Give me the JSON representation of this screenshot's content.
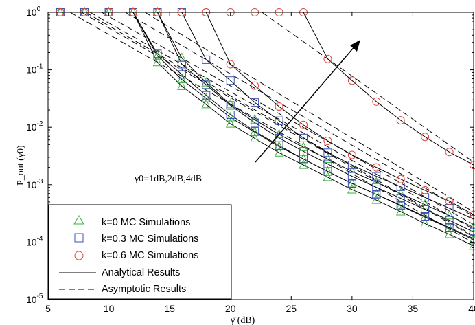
{
  "chart_data": {
    "type": "line",
    "xlabel": "γ̄ (dB)",
    "ylabel": "P_out (γ0)",
    "xlim": [
      5,
      40
    ],
    "ylim": [
      1e-05,
      1
    ],
    "yscale": "log",
    "x_ticks": [
      "5",
      "10",
      "15",
      "20",
      "25",
      "30",
      "35",
      "40"
    ],
    "y_ticks": [
      {
        "base": "10",
        "exp": "0"
      },
      {
        "base": "10",
        "exp": "-1"
      },
      {
        "base": "10",
        "exp": "-2"
      },
      {
        "base": "10",
        "exp": "-3"
      },
      {
        "base": "10",
        "exp": "-4"
      },
      {
        "base": "10",
        "exp": "-5"
      }
    ],
    "grid": false,
    "legend_position": "bottom-left",
    "annotation": "γ0=1dB,2dB,4dB",
    "colors": {
      "k0": "#3cb043",
      "k03": "#3c52b4",
      "k06": "#e0453d",
      "line": "#000000"
    },
    "x": [
      6,
      8,
      10,
      12,
      14,
      16,
      18,
      20,
      22,
      24,
      26,
      28,
      30,
      32,
      34,
      36,
      38,
      40
    ],
    "series": [
      {
        "k": "0",
        "gamma0_dB": 1,
        "start": 12,
        "values": [
          1,
          1,
          1,
          1,
          0.135,
          0.052,
          0.025,
          0.0115,
          0.0064,
          0.0036,
          0.0022,
          0.00135,
          0.00082,
          0.00054,
          0.00034,
          0.00021,
          0.000137,
          8.6e-05
        ]
      },
      {
        "k": "0",
        "gamma0_dB": 2,
        "start": 12,
        "values": [
          1,
          1,
          1,
          1,
          0.175,
          0.068,
          0.032,
          0.0148,
          0.0082,
          0.0046,
          0.0028,
          0.0017,
          0.00105,
          0.00068,
          0.00043,
          0.00027,
          0.000175,
          0.00011
        ]
      },
      {
        "k": "0",
        "gamma0_dB": 4,
        "start": 14,
        "values": [
          1,
          1,
          1,
          1,
          1,
          0.16,
          0.06,
          0.025,
          0.0135,
          0.0075,
          0.0045,
          0.0028,
          0.0017,
          0.0011,
          0.0007,
          0.00045,
          0.00029,
          0.00018
        ]
      },
      {
        "k": "0.3",
        "gamma0_dB": 1,
        "start": 12,
        "values": [
          1,
          1,
          1,
          1,
          0.19,
          0.083,
          0.036,
          0.0165,
          0.0085,
          0.0048,
          0.0028,
          0.0017,
          0.00105,
          0.00068,
          0.00044,
          0.00028,
          0.00018,
          0.000115
        ]
      },
      {
        "k": "0.3",
        "gamma0_dB": 2,
        "start": 14,
        "values": [
          1,
          1,
          1,
          1,
          1,
          0.125,
          0.055,
          0.024,
          0.012,
          0.0065,
          0.0038,
          0.0023,
          0.0014,
          0.0009,
          0.00058,
          0.00037,
          0.00024,
          0.00015
        ]
      },
      {
        "k": "0.3",
        "gamma0_dB": 4,
        "start": 16,
        "values": [
          1,
          1,
          1,
          1,
          1,
          1,
          0.15,
          0.065,
          0.027,
          0.013,
          0.0065,
          0.0036,
          0.0022,
          0.0014,
          0.00092,
          0.0006,
          0.00039,
          0.00025
        ]
      },
      {
        "k": "0.6",
        "gamma0_dB": 1,
        "start": 18,
        "values": [
          1,
          1,
          1,
          1,
          1,
          1,
          1,
          0.125,
          0.053,
          0.023,
          0.011,
          0.0058,
          0.0033,
          0.002,
          0.00125,
          0.0008,
          0.00052,
          0.0003
        ]
      },
      {
        "k": "0.6",
        "gamma0_dB": 4,
        "start": 26,
        "values": [
          1,
          1,
          1,
          1,
          1,
          1,
          1,
          1,
          1,
          1,
          1,
          0.155,
          0.065,
          0.028,
          0.0132,
          0.0068,
          0.0037,
          0.0022
        ]
      }
    ],
    "legend": [
      {
        "label": "k=0    MC Simulations",
        "marker": "triangle"
      },
      {
        "label": "k=0.3 MC Simulations",
        "marker": "square"
      },
      {
        "label": "k=0.6 MC Simulations",
        "marker": "circle"
      },
      {
        "label": "Analytical   Results",
        "marker": "solid-line"
      },
      {
        "label": "Asymptotic Results",
        "marker": "dashed-line"
      }
    ]
  }
}
